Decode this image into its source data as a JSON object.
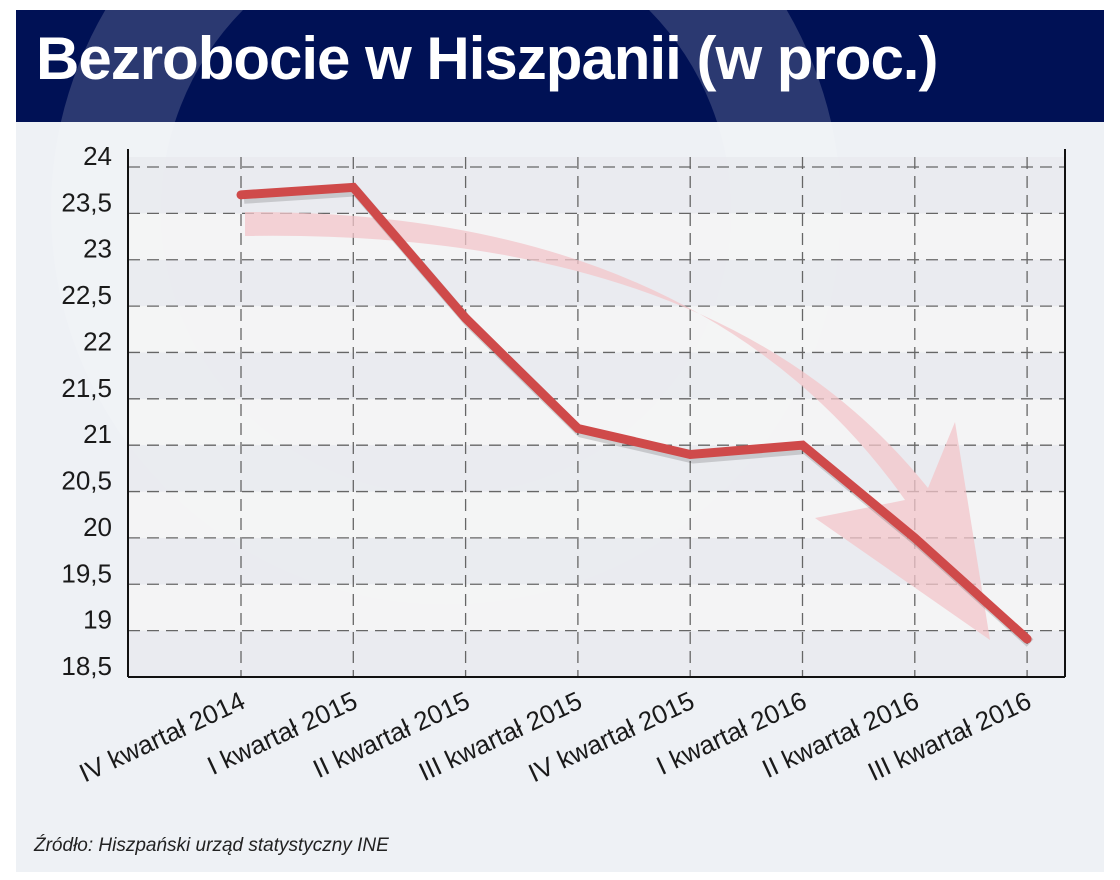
{
  "header": {
    "title": "Bezrobocie w Hiszpanii (w proc.)"
  },
  "source": "Źródło: Hiszpański urząd statystyczny INE",
  "colors": {
    "header": "#001155",
    "line": "#cf4a4a",
    "trend_arrow": "#f3c6c9",
    "background": "#eef1f5"
  },
  "chart_data": {
    "type": "line",
    "title": "Bezrobocie w Hiszpanii (w proc.)",
    "xlabel": "",
    "ylabel": "",
    "categories": [
      "IV kwartał 2014",
      "I kwartał 2015",
      "II kwartał 2015",
      "III kwartał 2015",
      "IV kwartał 2015",
      "I kwartał 2016",
      "II kwartał 2016",
      "III kwartał 2016"
    ],
    "series": [
      {
        "name": "Bezrobocie",
        "values": [
          23.7,
          23.78,
          22.37,
          21.18,
          20.9,
          21.0,
          20.0,
          18.91
        ]
      }
    ],
    "ylim": [
      18.5,
      24
    ],
    "yticks": [
      "18,5",
      "19",
      "19,5",
      "20",
      "20,5",
      "21",
      "21,5",
      "22",
      "22,5",
      "23",
      "23,5",
      "24"
    ],
    "grid": true,
    "annotations": [
      "downward trend arrow"
    ]
  }
}
